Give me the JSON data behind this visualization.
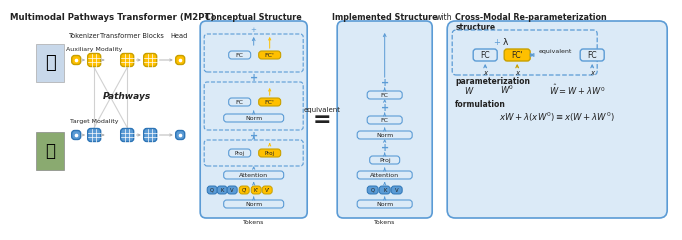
{
  "title": "Multimodal Pathways Transformer (M2PT)",
  "title2": "Conceptual Structure",
  "title3": "Implemented Structure",
  "title4": "Cross-Modal Re-parameterization",
  "bg_color": "#ffffff",
  "blue": "#5b9bd5",
  "blue2": "#2e75b6",
  "blue_fill": "#dbeaf7",
  "gold": "#ffc000",
  "gold_ec": "#c8a000",
  "text_dark": "#222222",
  "gray_arrow": "#aaaaaa",
  "lgray": "#cccccc"
}
